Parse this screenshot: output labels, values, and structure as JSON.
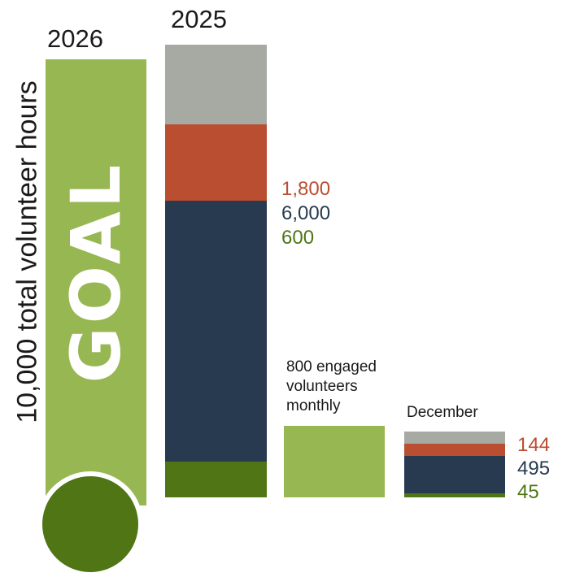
{
  "chart_data": {
    "type": "bar",
    "ylabel": "10,000 total volunteer hours",
    "bars": [
      {
        "label": "2026",
        "inner_text": "GOAL"
      },
      {
        "label": "2025",
        "segments": [
          {
            "value": 600,
            "color": "#4f7515"
          },
          {
            "value": 6000,
            "color": "#273a50"
          },
          {
            "value": 1800,
            "color": "#b94e30"
          },
          {
            "value": null,
            "color": "#a7aaa3"
          }
        ]
      },
      {
        "label": "800 engaged volunteers monthly"
      },
      {
        "label": "December",
        "segments": [
          {
            "value": 45,
            "color": "#4f7515"
          },
          {
            "value": 495,
            "color": "#273a50"
          },
          {
            "value": 144,
            "color": "#b94e30"
          },
          {
            "value": null,
            "color": "#a7aaa3"
          }
        ]
      }
    ],
    "value_labels_2025": [
      "1,800",
      "6,000",
      "600"
    ],
    "value_labels_december": [
      "144",
      "495",
      "45"
    ]
  },
  "labels": {
    "ylabel": "10,000 total volunteer hours",
    "year_2026": "2026",
    "year_2025": "2025",
    "goal": "GOAL",
    "engaged_line1": "800 engaged",
    "engaged_line2": "volunteers",
    "engaged_line3": "monthly",
    "december": "December",
    "v2025_orange": "1,800",
    "v2025_navy": "6,000",
    "v2025_green": "600",
    "vdec_orange": "144",
    "vdec_navy": "495",
    "vdec_green": "45"
  },
  "colors": {
    "light_green": "#97b752",
    "dark_green": "#4f7515",
    "navy": "#273a50",
    "orange": "#b94e30",
    "gray": "#a7aaa3"
  }
}
